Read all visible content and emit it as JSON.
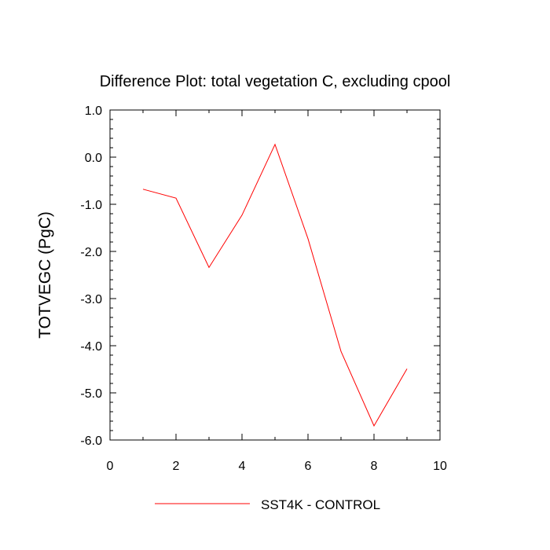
{
  "chart_data": {
    "type": "line",
    "title": "Difference Plot: total vegetation C, excluding cpool",
    "xlabel": "",
    "ylabel": "TOTVEGC  (PgC)",
    "xlim": [
      0,
      10
    ],
    "ylim": [
      -6.0,
      1.0
    ],
    "x_ticks": [
      0,
      2,
      4,
      6,
      8,
      10
    ],
    "x_tick_labels": [
      "0",
      "2",
      "4",
      "6",
      "8",
      "10"
    ],
    "y_ticks": [
      -6,
      -5,
      -4,
      -3,
      -2,
      -1,
      0,
      1
    ],
    "y_tick_labels": [
      "-6.0",
      "-5.0",
      "-4.0",
      "-3.0",
      "-2.0",
      "-1.0",
      "0.0",
      "1.0"
    ],
    "grid": false,
    "legend_position": "bottom-center",
    "series": [
      {
        "name": "SST4K - CONTROL",
        "color": "#ff0000",
        "x": [
          1,
          2,
          3,
          4,
          5,
          6,
          7,
          8,
          9
        ],
        "values": [
          -0.68,
          -0.87,
          -2.34,
          -1.23,
          0.27,
          -1.73,
          -4.12,
          -5.7,
          -4.49
        ]
      }
    ]
  }
}
